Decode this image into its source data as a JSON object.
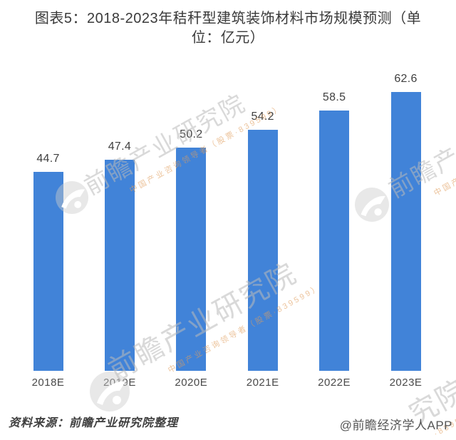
{
  "header": {
    "title_full": "图表5：2018-2023年秸秆型建筑装饰材料市场规模预测（单位：亿元）",
    "title_lines": [
      "图表5：2018-2023年秸秆型建筑装饰材料市场规模预测（单",
      "位：亿元）"
    ]
  },
  "chart_data": {
    "type": "bar",
    "title": "图表5：2018-2023年秸秆型建筑装饰材料市场规模预测（单位：亿元）",
    "unit": "亿元",
    "categories": [
      "2018E",
      "2019E",
      "2020E",
      "2021E",
      "2022E",
      "2023E"
    ],
    "values": [
      44.7,
      47.4,
      50.2,
      54.2,
      58.5,
      62.6
    ],
    "value_labels": [
      "44.7",
      "47.4",
      "50.2",
      "54.2",
      "58.5",
      "62.6"
    ],
    "bar_color": "#4183D8",
    "data_label_position": "above",
    "y_axis_visible": false,
    "x_axis_visible": false,
    "gridlines": false,
    "legend": null,
    "ylim": [
      0,
      65
    ]
  },
  "watermark": {
    "brand_text": "前瞻产业研究院",
    "tagline_text": "中国产业咨询领导者（股票·839599）",
    "corner_fragment_text": "究院",
    "corner_fragment_tagline": "·839599）",
    "text_color": "#BABABA",
    "accent_color": "#E09E5E"
  },
  "footer": {
    "source_text": "资料来源：前瞻产业研究院整理",
    "credit_text": "@前瞻经济学人APP"
  }
}
